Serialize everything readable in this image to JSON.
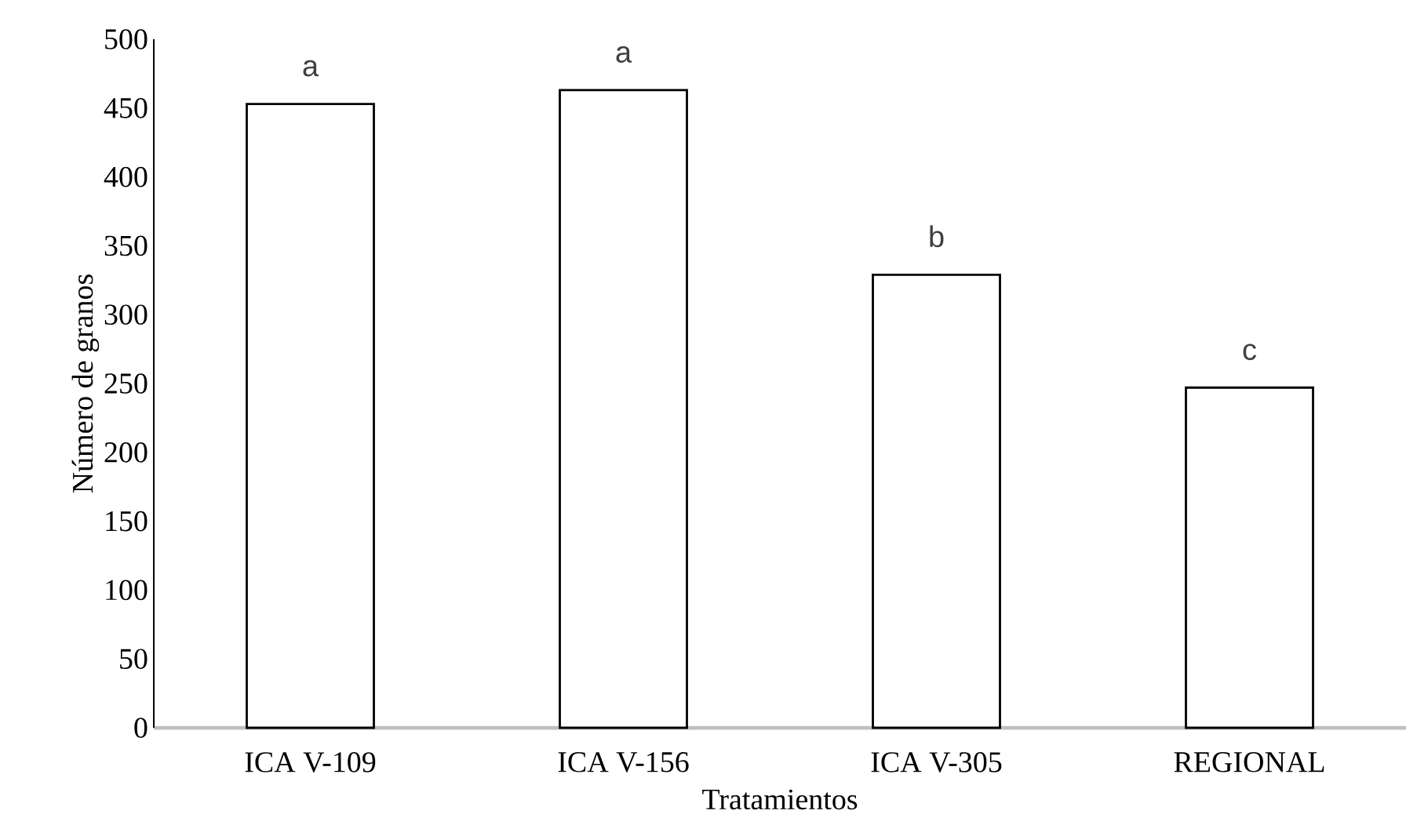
{
  "chart_data": {
    "type": "bar",
    "xlabel": "Tratamientos",
    "ylabel": "Número de granos",
    "categories": [
      "ICA V-109",
      "ICA V-156",
      "ICA V-305",
      "REGIONAL"
    ],
    "values": [
      453,
      463,
      329,
      247
    ],
    "color": "#ffffff",
    "ylim": [
      0,
      500
    ],
    "yticks": [
      0,
      50,
      100,
      150,
      200,
      250,
      300,
      350,
      400,
      450,
      500
    ],
    "annotations": [
      {
        "text": "a",
        "x": "ICA V-109",
        "y": 453
      },
      {
        "text": "a",
        "x": "ICA V-156",
        "y": 463
      },
      {
        "text": "b",
        "x": "ICA V-305",
        "y": 329
      },
      {
        "text": "c",
        "x": "REGIONAL",
        "y": 247
      }
    ]
  }
}
